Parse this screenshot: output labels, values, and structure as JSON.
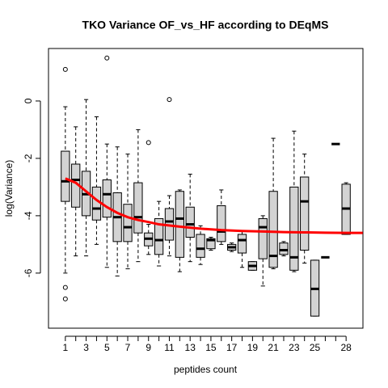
{
  "chart_data": {
    "type": "boxplot",
    "title": "TKO Variance OF_vs_HF according to DEqMS",
    "x_label": "peptides count",
    "y_label": "log(Variance)",
    "categories": [
      "1",
      null,
      "3",
      null,
      "5",
      null,
      "7",
      null,
      "9",
      null,
      "11",
      null,
      "13",
      null,
      "15",
      null,
      "17",
      null,
      "19",
      null,
      "21",
      null,
      "23",
      null,
      "25",
      null,
      null,
      "28"
    ],
    "box_color": "#d3d3d3",
    "boxes": [
      {
        "whisker_low": -6.0,
        "q1": -3.5,
        "median": -2.8,
        "q3": -1.75,
        "whisker_high": -0.2,
        "outliers": [
          1.1,
          -6.5,
          -6.9
        ]
      },
      {
        "whisker_low": -5.4,
        "q1": -3.7,
        "median": -2.75,
        "q3": -2.2,
        "whisker_high": -0.9,
        "outliers": []
      },
      {
        "whisker_low": -5.4,
        "q1": -4.0,
        "median": -3.25,
        "q3": -2.45,
        "whisker_high": 0.05,
        "outliers": []
      },
      {
        "whisker_low": -5.0,
        "q1": -4.15,
        "median": -3.75,
        "q3": -3.0,
        "whisker_high": -0.55,
        "outliers": []
      },
      {
        "whisker_low": -5.8,
        "q1": -4.05,
        "median": -3.25,
        "q3": -2.75,
        "whisker_high": -1.5,
        "outliers": [
          1.5
        ]
      },
      {
        "whisker_low": -6.1,
        "q1": -4.9,
        "median": -4.05,
        "q3": -3.2,
        "whisker_high": -1.6,
        "outliers": []
      },
      {
        "whisker_low": -5.85,
        "q1": -4.9,
        "median": -4.4,
        "q3": -3.6,
        "whisker_high": -1.85,
        "outliers": []
      },
      {
        "whisker_low": -5.6,
        "q1": -4.6,
        "median": -4.05,
        "q3": -2.85,
        "whisker_high": -1.0,
        "outliers": []
      },
      {
        "whisker_low": -5.35,
        "q1": -5.05,
        "median": -4.8,
        "q3": -4.6,
        "whisker_high": -4.3,
        "outliers": [
          -1.45
        ]
      },
      {
        "whisker_low": -5.75,
        "q1": -5.35,
        "median": -4.85,
        "q3": -4.1,
        "whisker_high": -3.5,
        "outliers": []
      },
      {
        "whisker_low": -5.4,
        "q1": -4.85,
        "median": -4.2,
        "q3": -3.75,
        "whisker_high": -3.3,
        "outliers": [
          0.05
        ]
      },
      {
        "whisker_low": -5.95,
        "q1": -5.45,
        "median": -4.1,
        "q3": -3.15,
        "whisker_high": -3.1,
        "outliers": []
      },
      {
        "whisker_low": -5.6,
        "q1": -4.75,
        "median": -4.3,
        "q3": -3.7,
        "whisker_high": -2.55,
        "outliers": []
      },
      {
        "whisker_low": -5.7,
        "q1": -5.45,
        "median": -5.15,
        "q3": -4.65,
        "whisker_high": -4.35,
        "outliers": []
      },
      {
        "whisker_low": -5.2,
        "q1": -5.15,
        "median": -4.85,
        "q3": -4.8,
        "whisker_high": -4.75,
        "outliers": []
      },
      {
        "whisker_low": -5.0,
        "q1": -4.9,
        "median": -4.55,
        "q3": -3.65,
        "whisker_high": -3.1,
        "outliers": []
      },
      {
        "whisker_low": -5.25,
        "q1": -5.2,
        "median": -5.1,
        "q3": -5.0,
        "whisker_high": -4.95,
        "outliers": []
      },
      {
        "whisker_low": -5.8,
        "q1": -5.3,
        "median": -4.85,
        "q3": -4.65,
        "whisker_high": -4.55,
        "outliers": []
      },
      {
        "whisker_low": -5.9,
        "q1": -5.9,
        "median": -5.75,
        "q3": -5.6,
        "whisker_high": -5.6,
        "outliers": []
      },
      {
        "whisker_low": -6.45,
        "q1": -5.5,
        "median": -4.4,
        "q3": -4.1,
        "whisker_high": -4.0,
        "outliers": []
      },
      {
        "whisker_low": -5.85,
        "q1": -5.8,
        "median": -5.4,
        "q3": -3.15,
        "whisker_high": -1.3,
        "outliers": []
      },
      {
        "whisker_low": -5.4,
        "q1": -5.35,
        "median": -5.2,
        "q3": -4.95,
        "whisker_high": -4.9,
        "outliers": []
      },
      {
        "whisker_low": -5.95,
        "q1": -5.9,
        "median": -5.45,
        "q3": -3.0,
        "whisker_high": -1.05,
        "outliers": []
      },
      {
        "whisker_low": -5.65,
        "q1": -5.2,
        "median": -3.5,
        "q3": -2.65,
        "whisker_high": -1.85,
        "outliers": []
      },
      {
        "whisker_low": -7.5,
        "q1": -7.5,
        "median": -6.55,
        "q3": -5.55,
        "whisker_high": -5.55,
        "outliers": []
      },
      {
        "whisker_low": -5.45,
        "q1": -5.45,
        "median": -5.45,
        "q3": -5.45,
        "whisker_high": -5.45,
        "outliers": []
      },
      {
        "whisker_low": -1.5,
        "q1": -1.5,
        "median": -1.5,
        "q3": -1.5,
        "whisker_high": -1.5,
        "outliers": []
      },
      {
        "whisker_low": -4.65,
        "q1": -4.65,
        "median": -3.75,
        "q3": -2.9,
        "whisker_high": -2.85,
        "outliers": []
      }
    ],
    "fit_line": {
      "color": "#ff0000",
      "x": [
        1,
        2,
        3,
        4,
        5,
        6,
        7,
        8,
        9,
        10,
        12,
        14,
        16,
        18,
        20,
        22,
        24,
        26,
        28,
        29.6
      ],
      "values": [
        -2.7,
        -2.85,
        -3.15,
        -3.45,
        -3.7,
        -3.9,
        -4.05,
        -4.15,
        -4.22,
        -4.3,
        -4.38,
        -4.45,
        -4.5,
        -4.53,
        -4.55,
        -4.57,
        -4.58,
        -4.59,
        -4.6,
        -4.6
      ]
    },
    "xlim": [
      -0.62,
      29.62
    ],
    "ylim": [
      -7.92,
      1.83
    ],
    "yticks": [
      0,
      -2,
      -4,
      -6
    ]
  }
}
